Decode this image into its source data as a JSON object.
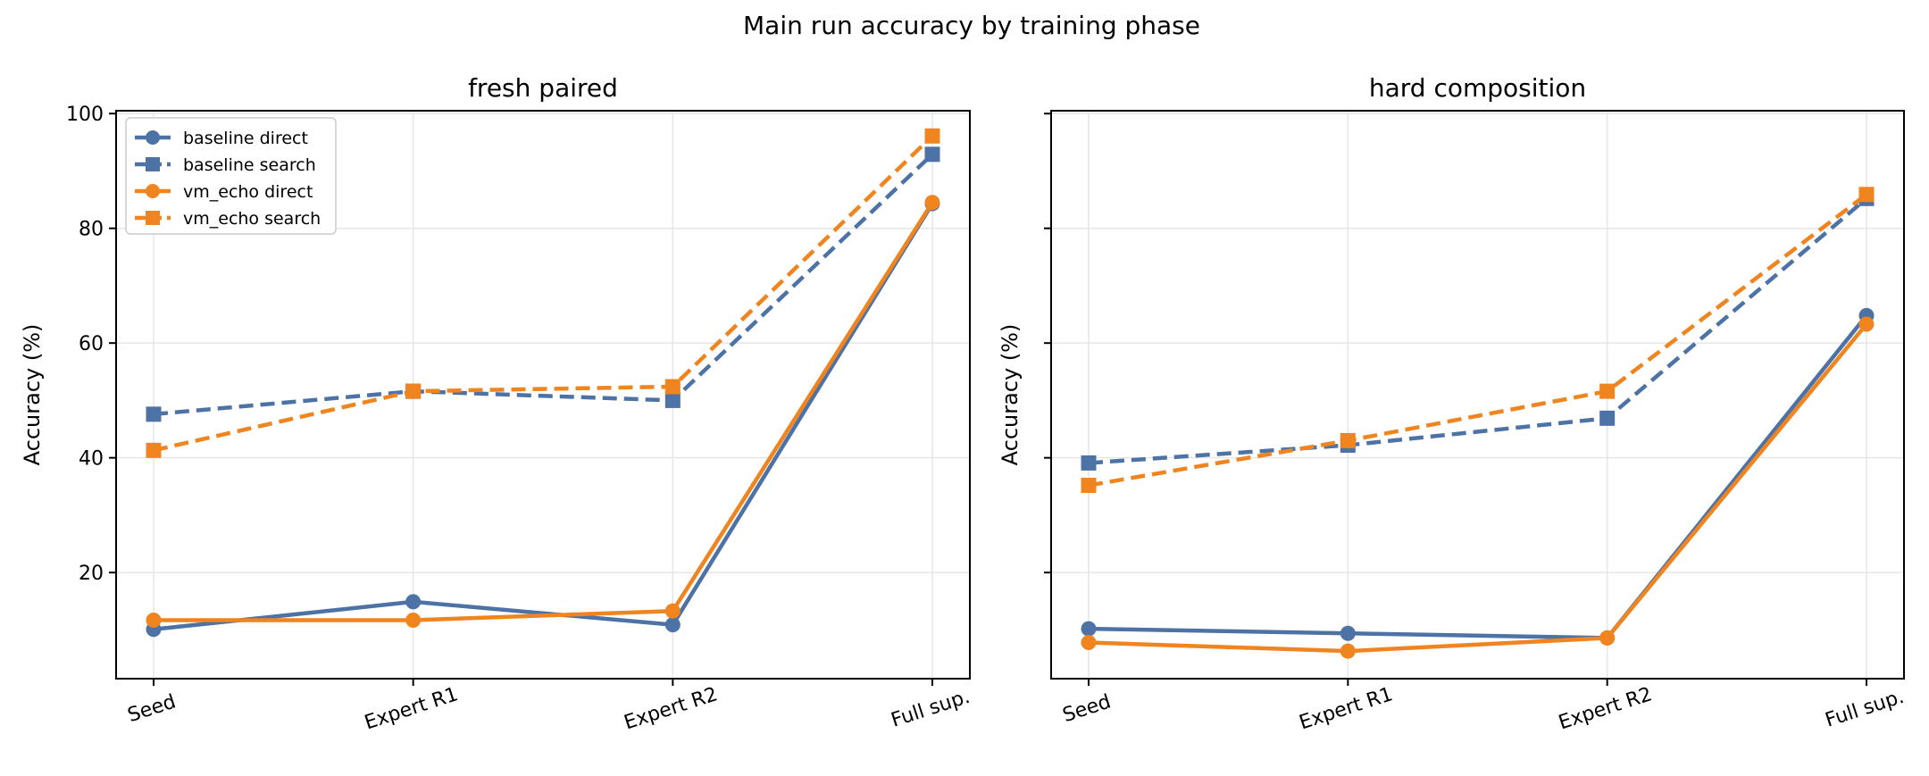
{
  "figure": {
    "title": "Main run accuracy by training phase"
  },
  "colors": {
    "baseline": "#4c72a6",
    "vm_echo": "#f0841f",
    "grid": "#e6e6e6",
    "axes": "#000000"
  },
  "chart_data": [
    {
      "type": "line",
      "title": "fresh paired",
      "xlabel": "",
      "ylabel": "Accuracy (%)",
      "categories": [
        "Seed",
        "Expert R1",
        "Expert R2",
        "Full sup."
      ],
      "ylim": [
        1.5,
        100.5
      ],
      "yticks": [
        20,
        40,
        60,
        80,
        100
      ],
      "grid": true,
      "legend": "top-left",
      "series": [
        {
          "name": "baseline direct",
          "values": [
            10.1,
            14.9,
            10.9,
            84.3
          ],
          "color": "#4c72a6",
          "style": "solid",
          "marker": "circle"
        },
        {
          "name": "baseline search",
          "values": [
            47.6,
            51.6,
            50.0,
            92.9
          ],
          "color": "#4c72a6",
          "style": "dashed",
          "marker": "square"
        },
        {
          "name": "vm_echo direct",
          "values": [
            11.7,
            11.7,
            13.3,
            84.5
          ],
          "color": "#f0841f",
          "style": "solid",
          "marker": "circle"
        },
        {
          "name": "vm_echo search",
          "values": [
            41.3,
            51.6,
            52.4,
            96.1
          ],
          "color": "#f0841f",
          "style": "dashed",
          "marker": "square"
        }
      ]
    },
    {
      "type": "line",
      "title": "hard composition",
      "xlabel": "",
      "ylabel": "Accuracy (%)",
      "categories": [
        "Seed",
        "Expert R1",
        "Expert R2",
        "Full sup."
      ],
      "ylim": [
        1.5,
        100.5
      ],
      "yticks": [
        20,
        40,
        60,
        80,
        100
      ],
      "yticklabels_shown": false,
      "grid": true,
      "series": [
        {
          "name": "baseline direct",
          "values": [
            10.2,
            9.4,
            8.6,
            64.8
          ],
          "color": "#4c72a6",
          "style": "solid",
          "marker": "circle"
        },
        {
          "name": "baseline search",
          "values": [
            39.1,
            42.2,
            46.9,
            85.2
          ],
          "color": "#4c72a6",
          "style": "dashed",
          "marker": "square"
        },
        {
          "name": "vm_echo direct",
          "values": [
            7.8,
            6.3,
            8.6,
            63.3
          ],
          "color": "#f0841f",
          "style": "solid",
          "marker": "circle"
        },
        {
          "name": "vm_echo search",
          "values": [
            35.2,
            43.0,
            51.6,
            85.9
          ],
          "color": "#f0841f",
          "style": "dashed",
          "marker": "square"
        }
      ]
    }
  ]
}
